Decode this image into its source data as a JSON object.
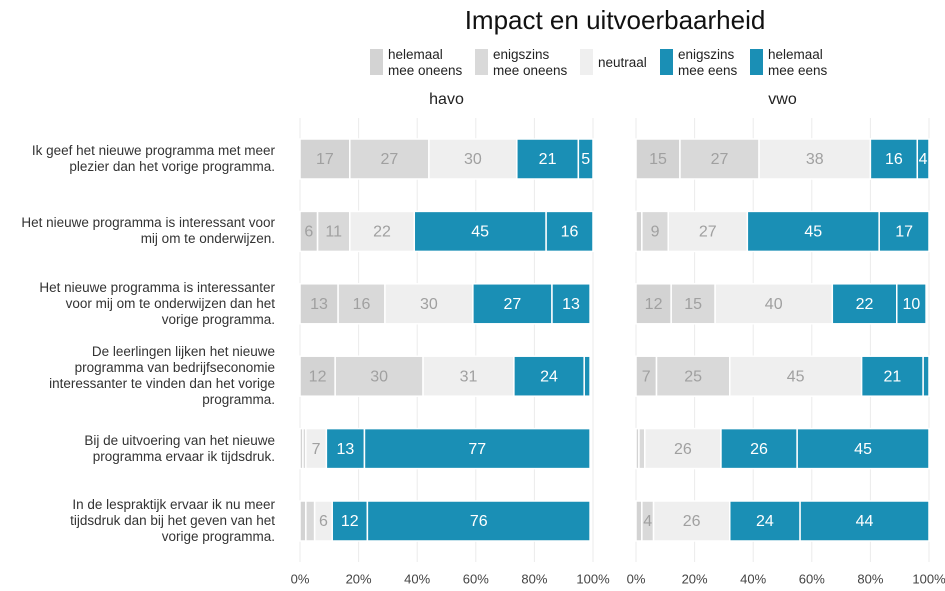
{
  "chart_data": {
    "type": "bar",
    "title": "Impact en uitvoerbaarheid",
    "categories": [
      "Ik geef het nieuwe programma met meer\nplezier dan het vorige programma.",
      "Het nieuwe programma is interessant voor\nmij om te onderwijzen.",
      "Het nieuwe programma is interessanter\nvoor mij om te onderwijzen dan het\nvorige programma.",
      "De leerlingen lijken het nieuwe\nprogramma van bedrijfseconomie\ninteressanter te vinden dan het vorige\nprogramma.",
      "Bij de uitvoering van het nieuwe\nprogramma ervaar ik tijdsdruk.",
      "In de lespraktijk ervaar ik nu meer\ntijdsdruk dan bij het geven van het\nvorige programma."
    ],
    "series": [
      {
        "name": "helemaal\nmee oneens",
        "color": "#d3d3d3"
      },
      {
        "name": "enigszins\nmee oneens",
        "color": "#d9d9d9"
      },
      {
        "name": "neutraal",
        "color": "#efefef"
      },
      {
        "name": "enigszins\nmee eens",
        "color": "#1a8fb5"
      },
      {
        "name": "helemaal\nmee eens",
        "color": "#1a8fb5"
      }
    ],
    "panels": [
      {
        "title": "havo",
        "series": [
          {
            "values": [
              17,
              6,
              13,
              12,
              1,
              2
            ]
          },
          {
            "values": [
              27,
              11,
              16,
              30,
              1,
              3
            ]
          },
          {
            "values": [
              30,
              22,
              30,
              31,
              7,
              6
            ]
          },
          {
            "values": [
              21,
              45,
              27,
              24,
              13,
              12
            ]
          },
          {
            "values": [
              5,
              16,
              13,
              2,
              77,
              76
            ]
          }
        ]
      },
      {
        "title": "vwo",
        "series": [
          {
            "values": [
              15,
              2,
              12,
              7,
              1,
              2
            ]
          },
          {
            "values": [
              27,
              9,
              15,
              25,
              2,
              4
            ]
          },
          {
            "values": [
              38,
              27,
              40,
              45,
              26,
              26
            ]
          },
          {
            "values": [
              16,
              45,
              22,
              21,
              26,
              24
            ]
          },
          {
            "values": [
              4,
              17,
              10,
              2,
              45,
              44
            ]
          }
        ]
      }
    ],
    "xlim": [
      0,
      100
    ],
    "xticks": [
      {
        "value": 0,
        "label": "0%"
      },
      {
        "value": 20,
        "label": "20%"
      },
      {
        "value": 40,
        "label": "40%"
      },
      {
        "value": 60,
        "label": "60%"
      },
      {
        "value": 80,
        "label": "80%"
      },
      {
        "value": 100,
        "label": "100%"
      }
    ],
    "grid": true
  }
}
